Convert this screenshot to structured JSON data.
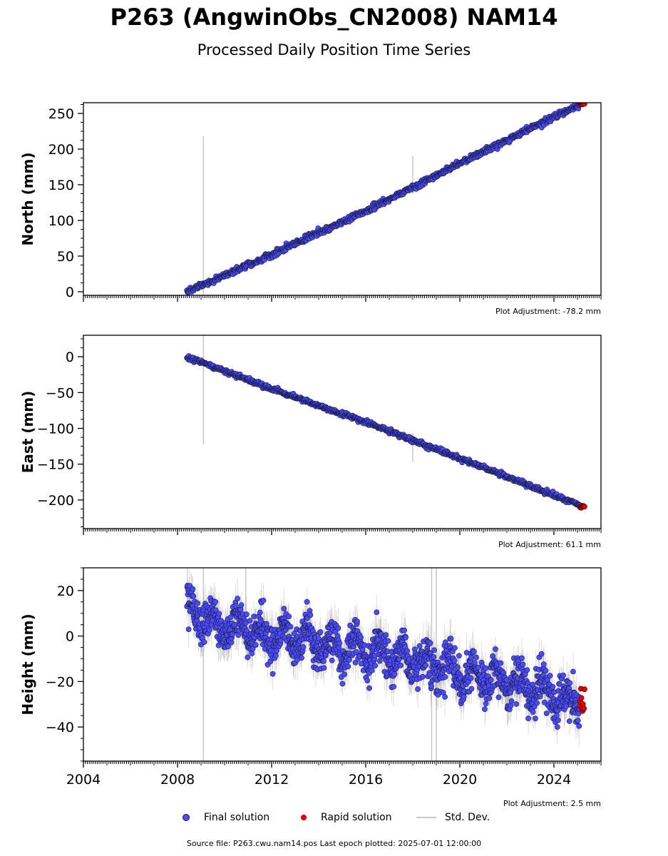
{
  "title": "P263 (AngwinObs_CN2008) NAM14",
  "subtitle": "Processed Daily Position Time Series",
  "colors": {
    "final": "#4b4bff",
    "final_edge": "#1a1a40",
    "rapid": "#e00000",
    "std_dev": "#c8c8c8"
  },
  "legend": {
    "final": "Final solution",
    "rapid": "Rapid solution",
    "std": "Std. Dev."
  },
  "source_text": "Source file: P263.cwu.nam14.pos  Last epoch plotted: 2025-07-01 12:00:00",
  "chart_data": [
    {
      "type": "scatter",
      "ylabel": "North (mm)",
      "adjustment": "Plot Adjustment: -78.2 mm",
      "xlim": [
        2004,
        2026
      ],
      "ylim": [
        -5,
        265
      ],
      "xticks": [
        2004,
        2008,
        2012,
        2016,
        2020,
        2024
      ],
      "ytick_labels": [
        "0",
        "50",
        "100",
        "150",
        "200",
        "250"
      ],
      "ytick_values": [
        0,
        50,
        100,
        150,
        200,
        250
      ],
      "x_start": 2008.4,
      "x_end": 2025.1,
      "trend": [
        [
          2008.4,
          0
        ],
        [
          2012,
          52
        ],
        [
          2016,
          113
        ],
        [
          2020,
          180
        ],
        [
          2024,
          245
        ],
        [
          2025.1,
          262
        ]
      ],
      "scatter_sd": 2.0,
      "rapid": {
        "x_start": 2025.1,
        "x_end": 2025.3,
        "y": [
          262,
          266
        ]
      },
      "error_bars": [
        {
          "x": 2009.1,
          "low": -5,
          "high": 218
        },
        {
          "x": 2018.0,
          "low": 137,
          "high": 190
        }
      ]
    },
    {
      "type": "scatter",
      "ylabel": "East (mm)",
      "adjustment": "Plot Adjustment: 61.1 mm",
      "xlim": [
        2004,
        2026
      ],
      "ylim": [
        -240,
        30
      ],
      "xticks": [
        2004,
        2008,
        2012,
        2016,
        2020,
        2024
      ],
      "ytick_labels": [
        "0",
        "−50",
        "−100",
        "−150",
        "−200"
      ],
      "ytick_values": [
        0,
        -50,
        -100,
        -150,
        -200
      ],
      "x_start": 2008.4,
      "x_end": 2025.1,
      "trend": [
        [
          2008.4,
          0
        ],
        [
          2012,
          -45
        ],
        [
          2016,
          -91
        ],
        [
          2020,
          -142
        ],
        [
          2024,
          -193
        ],
        [
          2025.1,
          -207
        ]
      ],
      "scatter_sd": 1.5,
      "rapid": {
        "x_start": 2025.1,
        "x_end": 2025.3,
        "y": [
          -211,
          -208
        ]
      },
      "error_bars": [
        {
          "x": 2009.1,
          "low": -122,
          "high": 30
        },
        {
          "x": 2018.0,
          "low": -147,
          "high": -107
        }
      ]
    },
    {
      "type": "scatter",
      "ylabel": "Height (mm)",
      "adjustment": "Plot Adjustment: 2.5 mm",
      "xlim": [
        2004,
        2026
      ],
      "ylim": [
        -55,
        30
      ],
      "xticks": [
        2004,
        2008,
        2012,
        2016,
        2020,
        2024
      ],
      "xtick_labels": [
        "2004",
        "2008",
        "2012",
        "2016",
        "2020",
        "2024"
      ],
      "ytick_labels": [
        "20",
        "0",
        "−20",
        "−40"
      ],
      "ytick_values": [
        20,
        0,
        -20,
        -40
      ],
      "x_start": 2008.4,
      "x_end": 2025.1,
      "trend": [
        [
          2008.4,
          9
        ],
        [
          2012,
          0
        ],
        [
          2016,
          -6
        ],
        [
          2020,
          -15
        ],
        [
          2024,
          -26
        ],
        [
          2025.1,
          -29
        ]
      ],
      "seasonal_amplitude": 5,
      "scatter_sd": 4.5,
      "rapid": {
        "x_start": 2025.1,
        "x_end": 2025.3,
        "y": [
          -34,
          -22
        ]
      },
      "error_bars": [
        {
          "x": 2009.1,
          "low": -55,
          "high": 30
        },
        {
          "x": 2018.8,
          "low": -55,
          "high": 30
        },
        {
          "x": 2019.0,
          "low": -55,
          "high": 30
        },
        {
          "x": 2010.9,
          "low": 0,
          "high": 30
        }
      ]
    }
  ]
}
